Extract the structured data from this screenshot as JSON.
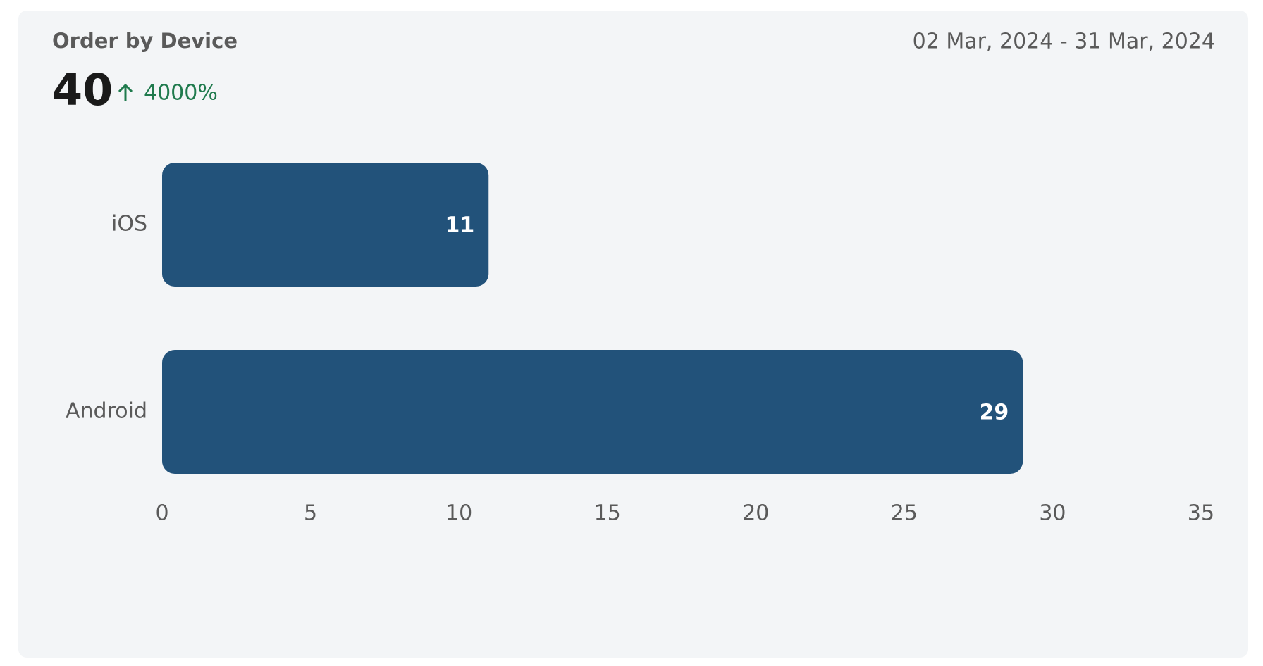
{
  "chart_data": {
    "type": "bar",
    "orientation": "horizontal",
    "title": "Order by Device",
    "subtitle": "02 Mar, 2024 - 31 Mar, 2024",
    "total": 40,
    "change": "4000%",
    "categories": [
      "iOS",
      "Android"
    ],
    "values": [
      11,
      29
    ],
    "color": "#22527a",
    "xlim": [
      0,
      35
    ],
    "xticks": [
      0,
      5,
      10,
      15,
      20,
      25,
      30,
      35
    ],
    "grid": false
  }
}
